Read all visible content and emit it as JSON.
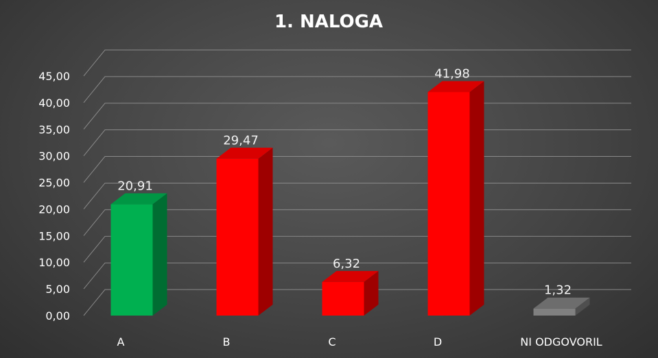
{
  "chart_data": {
    "type": "bar",
    "title": "1. NALOGA",
    "categories": [
      "A",
      "B",
      "C",
      "D",
      "NI ODGOVORIL"
    ],
    "values": [
      20.91,
      29.47,
      6.32,
      41.98,
      1.32
    ],
    "value_labels": [
      "20,91",
      "29,47",
      "6,32",
      "41,98",
      "1,32"
    ],
    "colors": [
      "#00b050",
      "#ff0000",
      "#ff0000",
      "#ff0000",
      "#808080"
    ],
    "ylim": [
      0,
      45
    ],
    "yticks": [
      "0,00",
      "5,00",
      "10,00",
      "15,00",
      "20,00",
      "25,00",
      "30,00",
      "35,00",
      "40,00",
      "45,00"
    ],
    "grid": true,
    "legend": "none",
    "xlabel": "",
    "ylabel": ""
  }
}
